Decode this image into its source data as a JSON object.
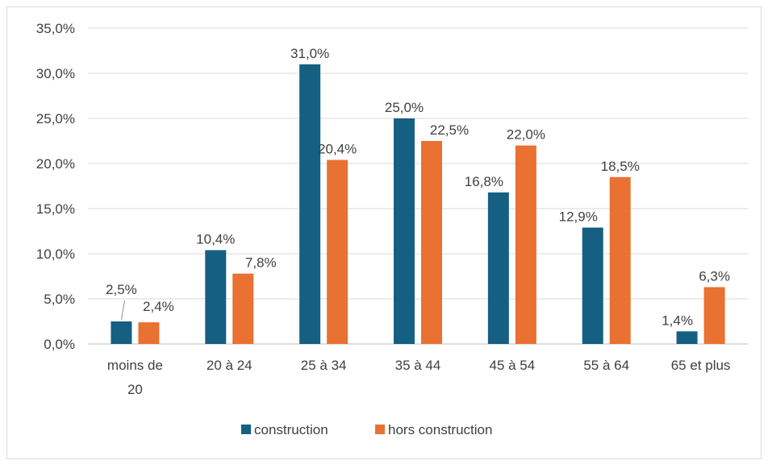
{
  "chart_data": {
    "type": "bar",
    "categories": [
      "moins de 20",
      "20 à 24",
      "25 à 34",
      "35 à 44",
      "45 à 54",
      "55 à 64",
      "65 et plus"
    ],
    "category_lines": [
      [
        "moins de",
        "20"
      ],
      [
        "20 à 24"
      ],
      [
        "25 à 34"
      ],
      [
        "35 à 44"
      ],
      [
        "45 à 54"
      ],
      [
        "55 à 64"
      ],
      [
        "65 et plus"
      ]
    ],
    "series": [
      {
        "name": "construction",
        "color": "#156082",
        "values": [
          2.5,
          10.4,
          31.0,
          25.0,
          16.8,
          12.9,
          1.4
        ],
        "labels": [
          "2,5%",
          "10,4%",
          "31,0%",
          "25,0%",
          "16,8%",
          "12,9%",
          "1,4%"
        ]
      },
      {
        "name": "hors construction",
        "color": "#E97132",
        "values": [
          2.4,
          7.8,
          20.4,
          22.5,
          22.0,
          18.5,
          6.3
        ],
        "labels": [
          "2,4%",
          "7,8%",
          "20,4%",
          "22,5%",
          "22,0%",
          "18,5%",
          "6,3%"
        ]
      }
    ],
    "y_ticks": [
      0,
      5,
      10,
      15,
      20,
      25,
      30,
      35
    ],
    "y_tick_labels": [
      "0,0%",
      "5,0%",
      "10,0%",
      "15,0%",
      "20,0%",
      "25,0%",
      "30,0%",
      "35,0%"
    ],
    "ylim": [
      0,
      35
    ],
    "grid": true,
    "legend_position": "bottom",
    "title": "",
    "xlabel": "",
    "ylabel": ""
  }
}
